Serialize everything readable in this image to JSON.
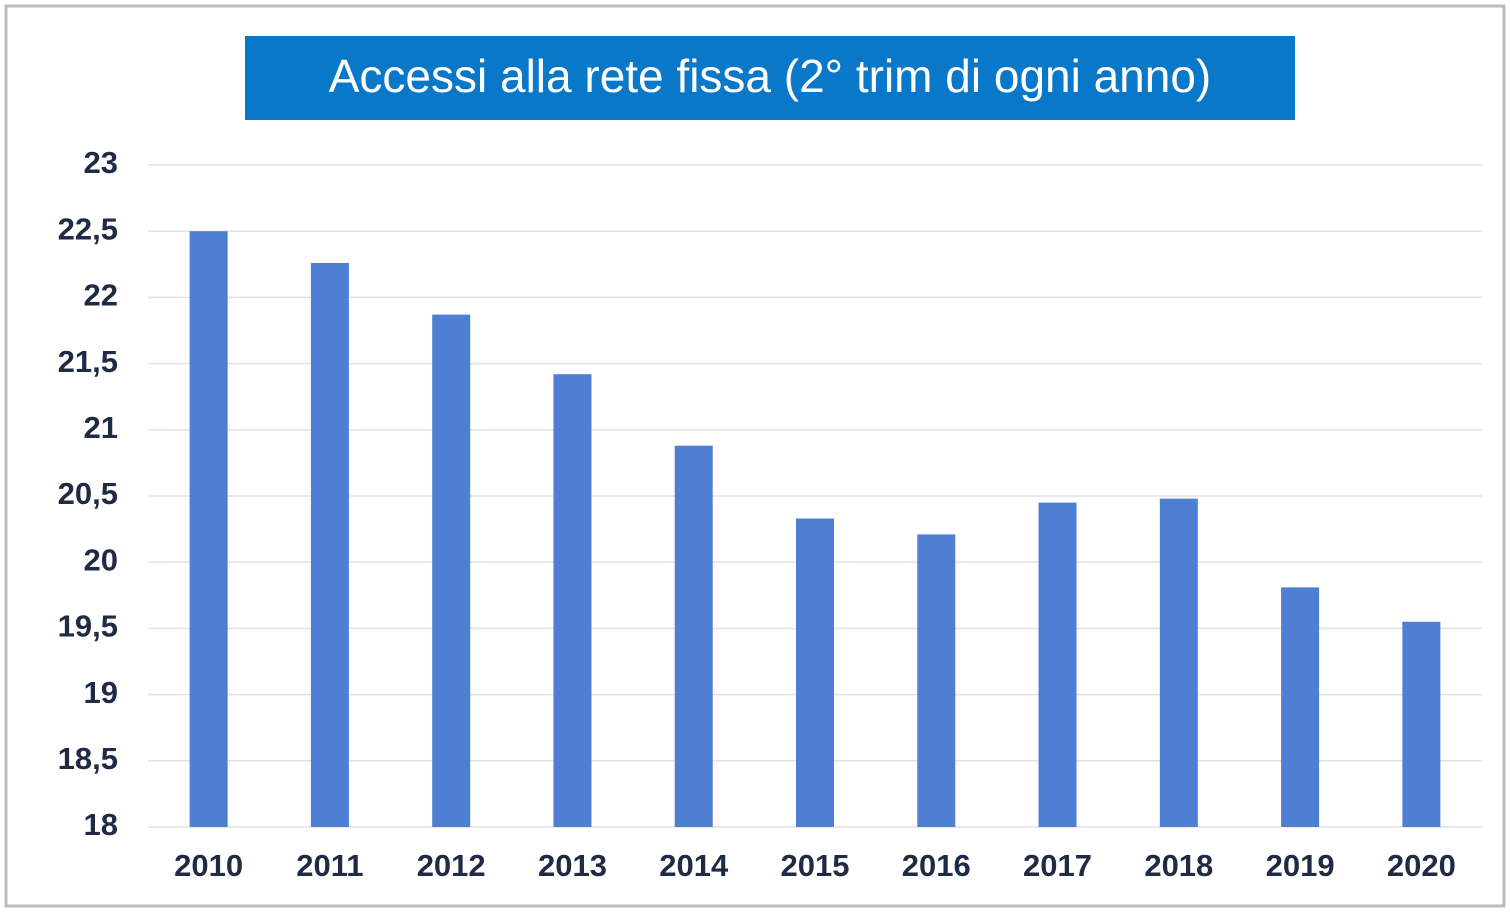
{
  "chart_data": {
    "type": "bar",
    "title": "Accessi alla rete fissa (2° trim di ogni anno)",
    "categories": [
      "2010",
      "2011",
      "2012",
      "2013",
      "2014",
      "2015",
      "2016",
      "2017",
      "2018",
      "2019",
      "2020"
    ],
    "values": [
      22.5,
      22.26,
      21.87,
      21.42,
      20.88,
      20.33,
      20.21,
      20.45,
      20.48,
      19.81,
      19.55
    ],
    "color": "#4f7fd3",
    "ylim": [
      18,
      23
    ],
    "yticks": [
      18,
      {
        "value": 18.5,
        "label": "18,5"
      },
      19,
      {
        "value": 19.5,
        "label": "19,5"
      },
      20,
      {
        "value": 20.5,
        "label": "20,5"
      },
      21,
      {
        "value": 21.5,
        "label": "21,5"
      },
      22,
      {
        "value": 22.5,
        "label": "22,5"
      },
      23
    ],
    "grid": true
  }
}
